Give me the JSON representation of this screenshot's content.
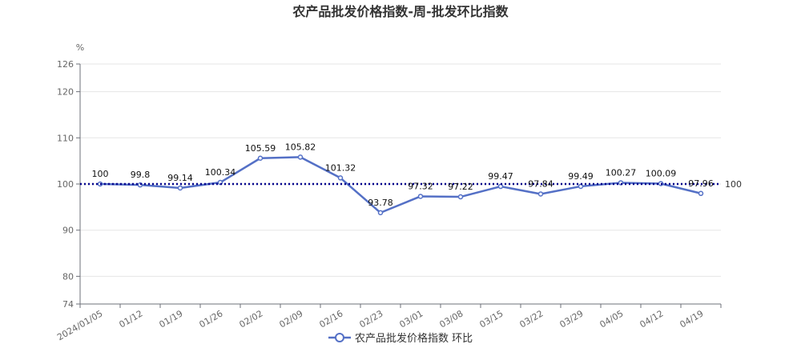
{
  "chart_data": {
    "type": "line",
    "title": "农产品批发价格指数-周-批发环比指数",
    "ylabel": "%",
    "xlabel": "",
    "ylim": [
      74,
      126
    ],
    "yticks": [
      74,
      80,
      90,
      100,
      110,
      120,
      126
    ],
    "grid": true,
    "legend_position": "bottom-center",
    "x": [
      "2024/01/05",
      "01/12",
      "01/19",
      "01/26",
      "02/02",
      "02/09",
      "02/16",
      "02/23",
      "03/01",
      "03/08",
      "03/15",
      "03/22",
      "03/29",
      "04/05",
      "04/12",
      "04/19"
    ],
    "series": [
      {
        "name": "农产品批发价格指数 环比",
        "color": "#5470c6",
        "values": [
          100,
          99.8,
          99.14,
          100.34,
          105.59,
          105.82,
          101.32,
          93.78,
          97.32,
          97.22,
          99.47,
          97.84,
          99.49,
          100.27,
          100.09,
          97.96
        ],
        "labels": [
          "100",
          "99.8",
          "99.14",
          "100.34",
          "105.59",
          "105.82",
          "101.32",
          "93.78",
          "97.32",
          "97.22",
          "99.47",
          "97.84",
          "99.49",
          "100.27",
          "100.09",
          "97.96"
        ]
      }
    ],
    "reference_line": {
      "value": 100,
      "label": "100",
      "color": "#00008b",
      "style": "dotted"
    }
  }
}
